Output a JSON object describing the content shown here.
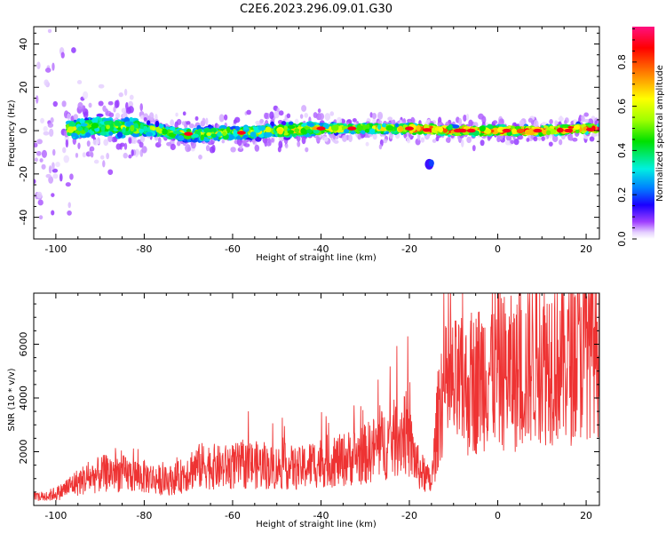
{
  "title": "C2E6.2023.296.09.01.G30",
  "chart_data": [
    {
      "type": "heatmap",
      "xlabel": "Height of straight line (km)",
      "ylabel": "Frequency (Hz)",
      "xlim": [
        -105,
        23
      ],
      "ylim": [
        -50,
        48
      ],
      "xticks": [
        -100,
        -80,
        -60,
        -40,
        -20,
        0,
        20
      ],
      "yticks": [
        -40,
        -20,
        0,
        20,
        40
      ],
      "colorbar": {
        "label": "Normalized spectral amplitude",
        "range": [
          0.0,
          0.96
        ],
        "ticks": [
          0.0,
          0.2,
          0.4,
          0.6,
          0.8
        ]
      },
      "ridge": {
        "description": "Main energy band near 0 Hz",
        "points": [
          [
            -100,
            0
          ],
          [
            -90,
            2
          ],
          [
            -80,
            1
          ],
          [
            -70,
            -2
          ],
          [
            -60,
            -1
          ],
          [
            -50,
            0
          ],
          [
            -40,
            1
          ],
          [
            -30,
            1
          ],
          [
            -20,
            1
          ],
          [
            -10,
            0
          ],
          [
            0,
            0
          ],
          [
            10,
            0
          ],
          [
            20,
            1
          ]
        ]
      },
      "grid": false
    },
    {
      "type": "line",
      "xlabel": "Height of straight line (km)",
      "ylabel": "SNR (10 * v/v)",
      "xlim": [
        -105,
        23
      ],
      "ylim": [
        0,
        7900
      ],
      "xticks": [
        -100,
        -80,
        -60,
        -40,
        -20,
        0,
        20
      ],
      "yticks": [
        2000,
        4000,
        6000
      ],
      "series": [
        {
          "color": "#ee3333",
          "x": [
            -105,
            -102,
            -99,
            -96,
            -93,
            -90,
            -87,
            -84,
            -81,
            -78,
            -75,
            -72,
            -69,
            -66,
            -63,
            -60,
            -57,
            -54,
            -51,
            -48,
            -45,
            -42,
            -39,
            -36,
            -33,
            -30,
            -27,
            -24,
            -21,
            -18,
            -15,
            -13,
            -11,
            -9,
            -7,
            -5,
            -3,
            -1,
            1,
            3,
            5,
            7,
            9,
            11,
            13,
            15,
            17,
            19,
            21,
            23
          ],
          "values": [
            300,
            350,
            500,
            800,
            1000,
            1150,
            1250,
            1150,
            1100,
            1000,
            900,
            1050,
            1400,
            1500,
            1400,
            1450,
            1500,
            1500,
            1400,
            1450,
            1350,
            1550,
            1650,
            1650,
            1800,
            1900,
            2200,
            2400,
            2800,
            1400,
            800,
            4100,
            4300,
            4400,
            4300,
            4600,
            5000,
            5200,
            5000,
            4900,
            4800,
            5200,
            5800,
            5400,
            5600,
            5300,
            5600,
            5900,
            6300,
            6200
          ]
        }
      ],
      "grid": false
    }
  ]
}
